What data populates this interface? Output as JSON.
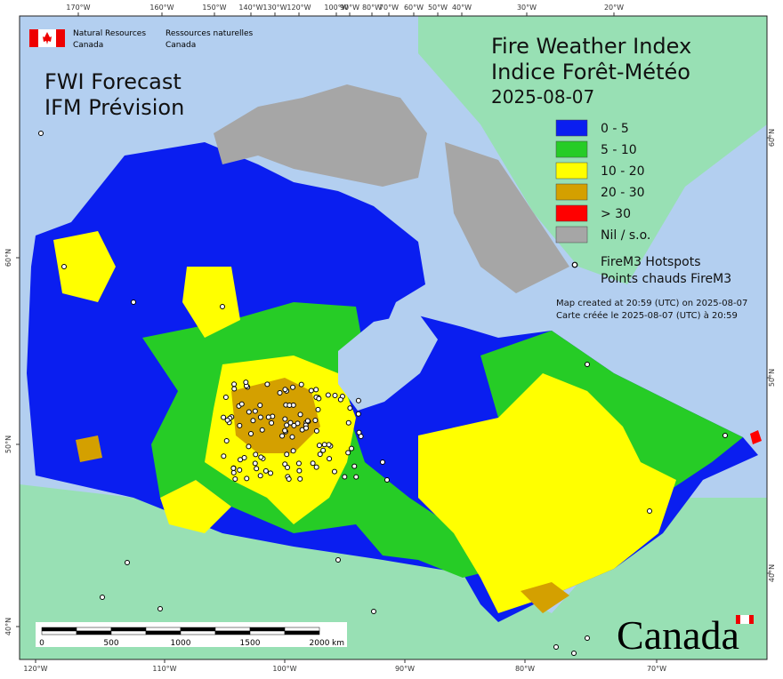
{
  "header": {
    "agency_en": [
      "Natural Resources",
      "Canada"
    ],
    "agency_fr": [
      "Ressources naturelles",
      "Canada"
    ]
  },
  "title": {
    "product": [
      "FWI Forecast",
      "IFM Prévision"
    ],
    "main": [
      "Fire Weather Index",
      "Indice Forêt-Météo"
    ],
    "date": "2025-08-07"
  },
  "legend": {
    "items": [
      {
        "label": "0 - 5",
        "color": "#0a1ef0"
      },
      {
        "label": "5 - 10",
        "color": "#26cc26"
      },
      {
        "label": "10 - 20",
        "color": "#ffff00"
      },
      {
        "label": "20 - 30",
        "color": "#d4a000"
      },
      {
        "label": "> 30",
        "color": "#ff0000"
      },
      {
        "label": "Nil / s.o.",
        "color": "#a6a6a6"
      }
    ],
    "hotspots": [
      "FireM3 Hotspots",
      "Points chauds FireM3"
    ]
  },
  "notes": [
    "Map created at 20:59 (UTC) on 2025-08-07",
    "Carte créée le 2025-08-07 (UTC) à 20:59"
  ],
  "axes": {
    "top": [
      "170°W",
      "160°W",
      "150°W",
      "140°W",
      "130°W",
      "120°W",
      "100°W",
      "90°W",
      "80°W",
      "70°W",
      "60°W",
      "50°W",
      "40°W",
      "30°W",
      "20°W"
    ],
    "bottom": [
      "120°W",
      "110°W",
      "100°W",
      "90°W",
      "80°W",
      "70°W"
    ],
    "left": [
      "60°N",
      "50°N",
      "40°N"
    ],
    "right": [
      "60°N",
      "50°N",
      "40°N"
    ]
  },
  "scale_bar": {
    "labels": [
      "0",
      "500",
      "1000",
      "1500",
      "2000"
    ],
    "unit": "km"
  },
  "wordmark": "Canada"
}
